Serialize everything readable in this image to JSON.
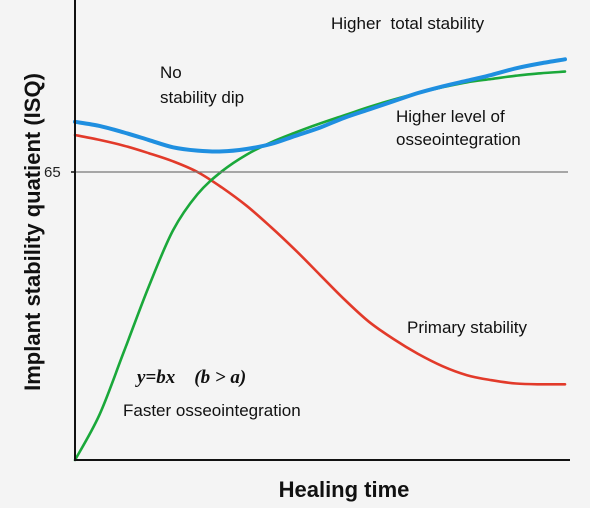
{
  "chart_data": {
    "type": "line",
    "xlabel": "Healing time",
    "ylabel": "Implant stability quatient (ISQ)",
    "yticks": [
      "65"
    ],
    "reference_line": {
      "y": 65,
      "color": "#777777"
    },
    "xlim": [
      0,
      100
    ],
    "ylim": [
      30,
      80
    ],
    "grid": false,
    "series": [
      {
        "key": "total",
        "color": "#1f8fe0",
        "x": [
          0,
          5,
          10,
          15,
          20,
          25,
          30,
          35,
          40,
          45,
          50,
          55,
          60,
          65,
          70,
          75,
          80,
          85,
          90,
          95,
          100
        ],
        "y": [
          71.1,
          70.6,
          69.8,
          68.9,
          68.0,
          67.6,
          67.5,
          67.8,
          68.4,
          69.4,
          70.4,
          71.6,
          72.6,
          73.6,
          74.6,
          75.4,
          76.1,
          76.8,
          77.6,
          78.2,
          78.7
        ]
      },
      {
        "key": "osseointegration",
        "color": "#1aa83a",
        "x": [
          0,
          5,
          10,
          15,
          20,
          25,
          30,
          35,
          40,
          45,
          50,
          55,
          60,
          65,
          70,
          75,
          80,
          85,
          90,
          95,
          100
        ],
        "y": [
          30.0,
          35.5,
          43.2,
          51.0,
          57.9,
          62.3,
          65.1,
          67.1,
          68.6,
          69.8,
          70.9,
          71.9,
          72.9,
          73.8,
          74.6,
          75.3,
          75.9,
          76.3,
          76.7,
          77.0,
          77.2
        ]
      },
      {
        "key": "primary",
        "color": "#e23a2a",
        "x": [
          0,
          5,
          10,
          15,
          20,
          25,
          30,
          35,
          40,
          45,
          50,
          55,
          60,
          65,
          70,
          75,
          80,
          85,
          90,
          95,
          100
        ],
        "y": [
          69.5,
          68.9,
          68.2,
          67.3,
          66.3,
          65.0,
          63.1,
          60.9,
          58.3,
          55.5,
          52.5,
          49.5,
          46.8,
          44.7,
          42.9,
          41.4,
          40.3,
          39.7,
          39.3,
          39.2,
          39.2
        ]
      }
    ],
    "annotations": {
      "higher_total": "Higher  total stability",
      "no_dip_line1": "No",
      "no_dip_line2": "stability dip",
      "higher_level_line1": "Higher level of",
      "higher_level_line2": "osseointegration",
      "primary": "Primary stability",
      "formula": "y=bx    (b > a)",
      "faster": "Faster osseointegration"
    }
  }
}
